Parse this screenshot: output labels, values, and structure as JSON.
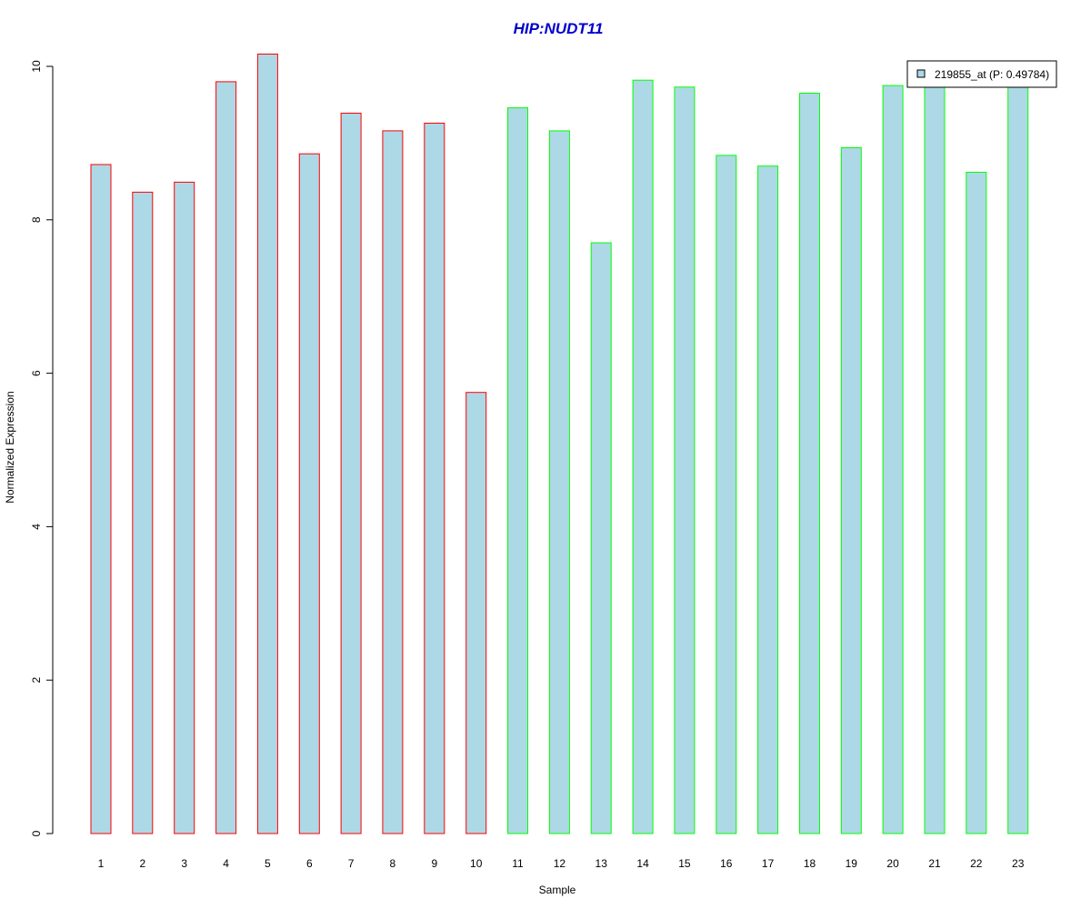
{
  "chart_data": {
    "type": "bar",
    "title": "HIP:NUDT11",
    "xlabel": "Sample",
    "ylabel": "Normalized Expression",
    "ylim": [
      0,
      10
    ],
    "yticks": [
      0,
      2,
      4,
      6,
      8,
      10
    ],
    "categories": [
      "1",
      "2",
      "3",
      "4",
      "5",
      "6",
      "7",
      "8",
      "9",
      "10",
      "11",
      "12",
      "13",
      "14",
      "15",
      "16",
      "17",
      "18",
      "19",
      "20",
      "21",
      "22",
      "23"
    ],
    "values": [
      8.72,
      8.36,
      8.49,
      9.8,
      10.16,
      8.86,
      9.39,
      9.16,
      9.26,
      5.75,
      9.46,
      9.16,
      7.7,
      9.82,
      9.73,
      8.84,
      8.7,
      9.65,
      8.94,
      9.75,
      9.75,
      8.62,
      9.75
    ],
    "groups": [
      "red",
      "red",
      "red",
      "red",
      "red",
      "red",
      "red",
      "red",
      "red",
      "red",
      "green",
      "green",
      "green",
      "green",
      "green",
      "green",
      "green",
      "green",
      "green",
      "green",
      "green",
      "green",
      "green"
    ],
    "legend": {
      "label": "219855_at (P: 0.49784)",
      "position": "top-right"
    },
    "grid": false
  },
  "colors": {
    "bar_fill": "#add8e6",
    "group_red": "#ff0000",
    "group_green": "#00ff00",
    "title": "#0000cd",
    "axis": "#000000"
  }
}
